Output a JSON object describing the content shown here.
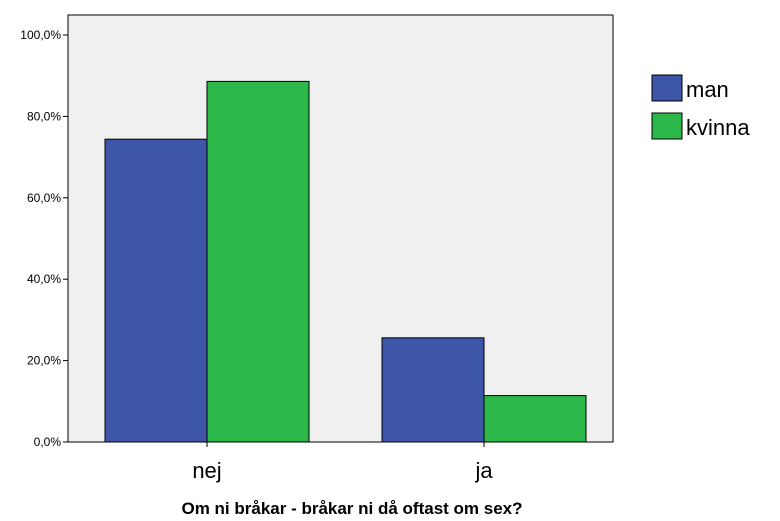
{
  "chart_data": {
    "type": "bar",
    "categories": [
      "nej",
      "ja"
    ],
    "series": [
      {
        "name": "man",
        "values": [
          74.4,
          25.6
        ],
        "color": "#3d56a8"
      },
      {
        "name": "kvinna",
        "values": [
          88.6,
          11.4
        ],
        "color": "#2db84a"
      }
    ],
    "title": "",
    "xlabel": "Om ni bråkar - bråkar ni då oftast om sex?",
    "ylabel": "",
    "ylim": [
      0,
      100
    ],
    "yticks": [
      0,
      20,
      40,
      60,
      80,
      100
    ],
    "ytick_labels": [
      "0,0%",
      "20,0%",
      "40,0%",
      "60,0%",
      "80,0%",
      "100,0%"
    ],
    "plot_background": "#f0f0f0",
    "grid": false,
    "legend_position": "right"
  }
}
